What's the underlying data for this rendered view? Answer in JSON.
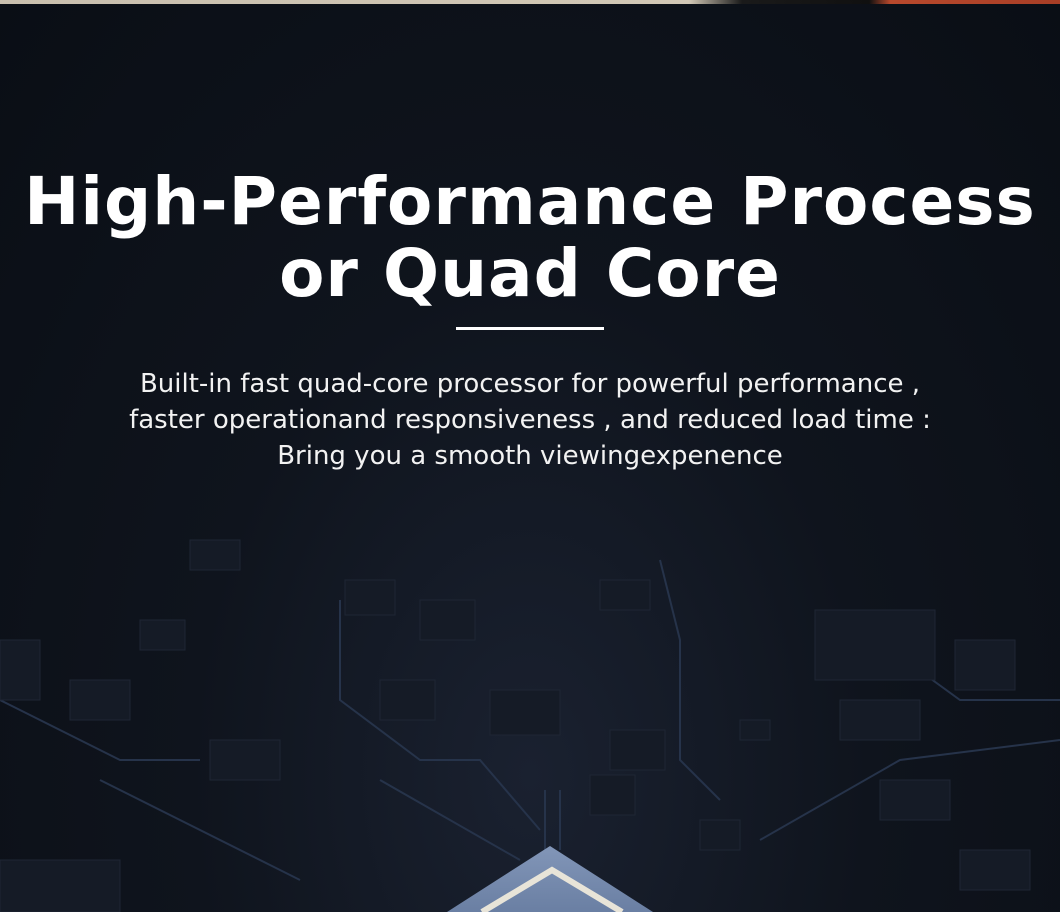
{
  "heading": {
    "line1": "High-Performance Process",
    "line2": "or Quad Core"
  },
  "description": {
    "line1": "Built-in fast quad-core processor for powerful performance ,",
    "line2": "faster operationand responsiveness , and reduced load time :",
    "line3": "Bring you a smooth viewingexpenence"
  },
  "colors": {
    "background": "#0b0f16",
    "text": "#ffffff",
    "chip": "#6f84a8",
    "trace": "#4a5f86"
  }
}
